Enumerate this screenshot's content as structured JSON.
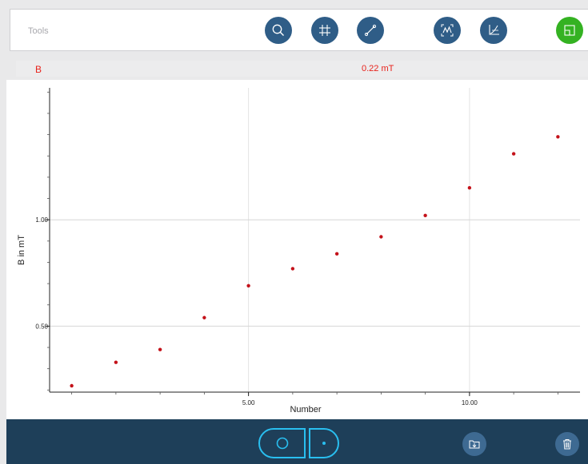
{
  "toolbar": {
    "label": "Tools",
    "buttons": [
      {
        "name": "zoom-button",
        "icon": "magnifier-icon"
      },
      {
        "name": "crosshair-button",
        "icon": "crosshair-frame-icon"
      },
      {
        "name": "line-tool-button",
        "icon": "line-segment-icon"
      },
      {
        "name": "autoscale-button",
        "icon": "autoscale-curve-icon"
      },
      {
        "name": "axes-button",
        "icon": "axes-curve-icon"
      },
      {
        "name": "layout-button",
        "icon": "split-window-icon"
      }
    ],
    "colors": {
      "button": "#2f5d87",
      "active": "#34b222"
    }
  },
  "readout": {
    "name": "B",
    "value": "0.22 mT",
    "color": "#e8221b"
  },
  "chart_data": {
    "type": "scatter",
    "xlabel": "Number",
    "ylabel": "B in mT",
    "xlim": [
      0.5,
      12.5
    ],
    "ylim": [
      0.19,
      1.62
    ],
    "xticks": [
      5,
      10
    ],
    "xtick_labels": [
      "5.00",
      "10.00"
    ],
    "yticks": [
      0.5,
      1.0
    ],
    "ytick_labels": [
      "0.50",
      "1.00"
    ],
    "grid": true,
    "point_color": "#c4121a",
    "x": [
      1,
      2,
      3,
      4,
      5,
      6,
      7,
      8,
      9,
      10,
      11,
      12
    ],
    "y": [
      0.22,
      0.33,
      0.39,
      0.54,
      0.69,
      0.77,
      0.84,
      0.92,
      1.02,
      1.15,
      1.31,
      1.39
    ]
  },
  "bottombar": {
    "mode_left_icon": "circle-record-icon",
    "mode_right_icon": "dot-point-icon",
    "export_icon": "folder-download-icon",
    "delete_icon": "trash-icon",
    "accent": "#29bff0"
  }
}
